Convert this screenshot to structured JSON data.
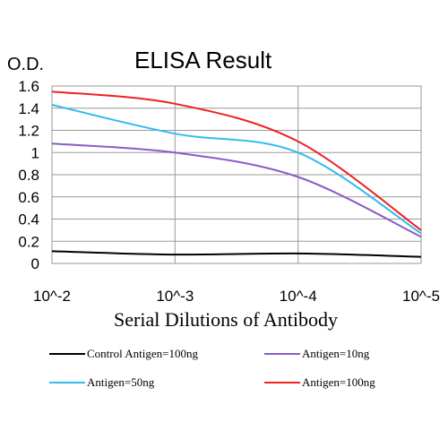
{
  "chart_data": {
    "type": "line",
    "title": "ELISA Result",
    "ylabel": "O.D.",
    "xlabel": "Serial Dilutions of Antibody",
    "x_ticks": [
      "10^-2",
      "10^-3",
      "10^-4",
      "10^-5"
    ],
    "y_ticks": [
      "0",
      "0.2",
      "0.4",
      "0.6",
      "0.8",
      "1",
      "1.2",
      "1.4",
      "1.6"
    ],
    "ylim": [
      0,
      1.6
    ],
    "x_scale": "log dilution",
    "grid": true,
    "legend_placement": "bottom",
    "series": [
      {
        "name": "Control Antigen=100ng",
        "color": "#000000",
        "x": [
          "10^-2",
          "10^-3",
          "10^-4",
          "10^-5"
        ],
        "values": [
          0.11,
          0.08,
          0.09,
          0.06
        ]
      },
      {
        "name": "Antigen=10ng",
        "color": "#8a5cc7",
        "x": [
          "10^-2",
          "10^-3",
          "10^-4",
          "10^-5"
        ],
        "values": [
          1.08,
          1.0,
          0.78,
          0.24
        ]
      },
      {
        "name": "Antigen=50ng",
        "color": "#33bbee",
        "x": [
          "10^-2",
          "10^-3",
          "10^-4",
          "10^-5"
        ],
        "values": [
          1.43,
          1.17,
          1.0,
          0.27
        ]
      },
      {
        "name": "Antigen=100ng",
        "color": "#ee2222",
        "x": [
          "10^-2",
          "10^-3",
          "10^-4",
          "10^-5"
        ],
        "values": [
          1.55,
          1.44,
          1.1,
          0.3
        ]
      }
    ]
  }
}
